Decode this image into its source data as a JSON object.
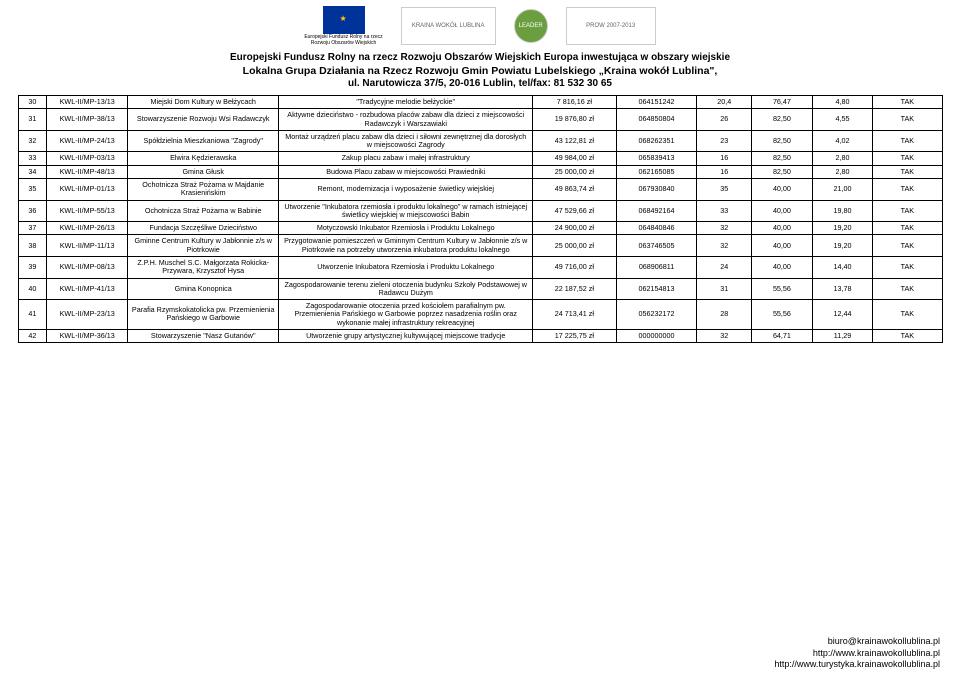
{
  "header": {
    "logo_eu_caption_l1": "Europejski Fundusz Rolny na rzecz",
    "logo_eu_caption_l2": "Rozwoju Obszarów Wiejskich",
    "h1": "Europejski Fundusz Rolny na rzecz Rozwoju Obszarów Wiejskich Europa inwestująca w obszary wiejskie",
    "h2": "Lokalna Grupa Działania na Rzecz Rozwoju Gmin Powiatu Lubelskiego „Kraina wokół Lublina\",",
    "h3": "ul. Narutowicza 37/5, 20-016 Lublin, tel/fax: 81 532 30 65"
  },
  "table": {
    "rows": [
      {
        "lp": "30",
        "ref": "KWL-II/MP-13/13",
        "app": "Miejski Dom Kultury w Bełżycach",
        "desc": "\"Tradycyjne melodie bełżyckie\"",
        "amt": "7 816,16 zł",
        "nip": "064151242",
        "n1": "20,4",
        "n2": "76,47",
        "n3": "4,80",
        "tak": "TAK"
      },
      {
        "lp": "31",
        "ref": "KWL-II/MP-38/13",
        "app": "Stowarzyszenie Rozwoju Wsi Radawczyk",
        "desc": "Aktywne dzieciństwo - rozbudowa placów zabaw dla dzieci z miejscowości Radawczyk i Warszawiaki",
        "amt": "19 876,80 zł",
        "nip": "064850804",
        "n1": "26",
        "n2": "82,50",
        "n3": "4,55",
        "tak": "TAK"
      },
      {
        "lp": "32",
        "ref": "KWL-II/MP-24/13",
        "app": "Spółdzielnia Mieszkaniowa \"Zagrody\"",
        "desc": "Montaż urządzeń placu zabaw dla dzieci i siłowni zewnętrznej dla dorosłych w miejscowości Zagrody",
        "amt": "43 122,81 zł",
        "nip": "068262351",
        "n1": "23",
        "n2": "82,50",
        "n3": "4,02",
        "tak": "TAK"
      },
      {
        "lp": "33",
        "ref": "KWL-II/MP-03/13",
        "app": "Elwira Kędzierawska",
        "desc": "Zakup placu zabaw i małej infrastruktury",
        "amt": "49 984,00 zł",
        "nip": "065839413",
        "n1": "16",
        "n2": "82,50",
        "n3": "2,80",
        "tak": "TAK"
      },
      {
        "lp": "34",
        "ref": "KWL-II/MP-48/13",
        "app": "Gmina Głusk",
        "desc": "Budowa Placu zabaw w miejscowości Prawiedniki",
        "amt": "25 000,00 zł",
        "nip": "062165085",
        "n1": "16",
        "n2": "82,50",
        "n3": "2,80",
        "tak": "TAK"
      },
      {
        "lp": "35",
        "ref": "KWL-II/MP-01/13",
        "app": "Ochotnicza Straż Pożarna w Majdanie Krasienińskim",
        "desc": "Remont, modernizacja i wyposażenie świetlicy wiejskiej",
        "amt": "49 863,74 zł",
        "nip": "067930840",
        "n1": "35",
        "n2": "40,00",
        "n3": "21,00",
        "tak": "TAK"
      },
      {
        "lp": "36",
        "ref": "KWL-II/MP-55/13",
        "app": "Ochotnicza Straż Pożarna w Babinie",
        "desc": "Utworzenie \"Inkubatora rzemiosła i produktu lokalnego\" w ramach istniejącej świetlicy wiejskiej w miejscowości Babin",
        "amt": "47 529,66 zł",
        "nip": "068492164",
        "n1": "33",
        "n2": "40,00",
        "n3": "19,80",
        "tak": "TAK"
      },
      {
        "lp": "37",
        "ref": "KWL-II/MP-26/13",
        "app": "Fundacja Szczęśliwe Dzieciństwo",
        "desc": "Motyczowski Inkubator Rzemiosła i Produktu Lokalnego",
        "amt": "24 900,00 zł",
        "nip": "064840846",
        "n1": "32",
        "n2": "40,00",
        "n3": "19,20",
        "tak": "TAK"
      },
      {
        "lp": "38",
        "ref": "KWL-II/MP-11/13",
        "app": "Gminne Centrum Kultury w Jabłonnie z/s w Piotrkowie",
        "desc": "Przygotowanie pomieszczeń w Gminnym Centrum Kultury w Jabłonnie z/s w Piotrkowie na potrzeby utworzenia inkubatora produktu lokalnego",
        "amt": "25 000,00 zł",
        "nip": "063746505",
        "n1": "32",
        "n2": "40,00",
        "n3": "19,20",
        "tak": "TAK"
      },
      {
        "lp": "39",
        "ref": "KWL-II/MP-08/13",
        "app": "Z.P.H. Muschel S.C. Małgorzata Rokicka- Przywara, Krzysztof Hysa",
        "desc": "Utworzenie Inkubatora Rzemiosła i Produktu Lokalnego",
        "amt": "49 716,00 zł",
        "nip": "068906811",
        "n1": "24",
        "n2": "40,00",
        "n3": "14,40",
        "tak": "TAK"
      },
      {
        "lp": "40",
        "ref": "KWL-II/MP-41/13",
        "app": "Gmina Konopnica",
        "desc": "Zagospodarowanie terenu zieleni otoczenia budynku Szkoły Podstawowej w Radawcu Dużym",
        "amt": "22 187,52 zł",
        "nip": "062154813",
        "n1": "31",
        "n2": "55,56",
        "n3": "13,78",
        "tak": "TAK"
      },
      {
        "lp": "41",
        "ref": "KWL-II/MP-23/13",
        "app": "Parafia Rzymskokatolicka pw. Przemienienia Pańskiego w Garbowie",
        "desc": "Zagospodarowanie otoczenia przed kościołem parafialnym pw. Przemienienia Pańskiego w Garbowie poprzez nasadzenia roślin oraz wykonanie małej infrastruktury rekreacyjnej",
        "amt": "24 713,41 zł",
        "nip": "056232172",
        "n1": "28",
        "n2": "55,56",
        "n3": "12,44",
        "tak": "TAK"
      },
      {
        "lp": "42",
        "ref": "KWL-II/MP-36/13",
        "app": "Stowarzyszenie \"Nasz Gutanów\"",
        "desc": "Utworzenie grupy artystycznej kultywującej miejscowe tradycje",
        "amt": "17 225,75 zł",
        "nip": "000000000",
        "n1": "32",
        "n2": "64,71",
        "n3": "11,29",
        "tak": "TAK"
      }
    ]
  },
  "footer": {
    "email": "biuro@krainawokollublina.pl",
    "url1": "http://www.krainawokollublina.pl",
    "url2": "http://www.turystyka.krainawokollublina.pl"
  }
}
